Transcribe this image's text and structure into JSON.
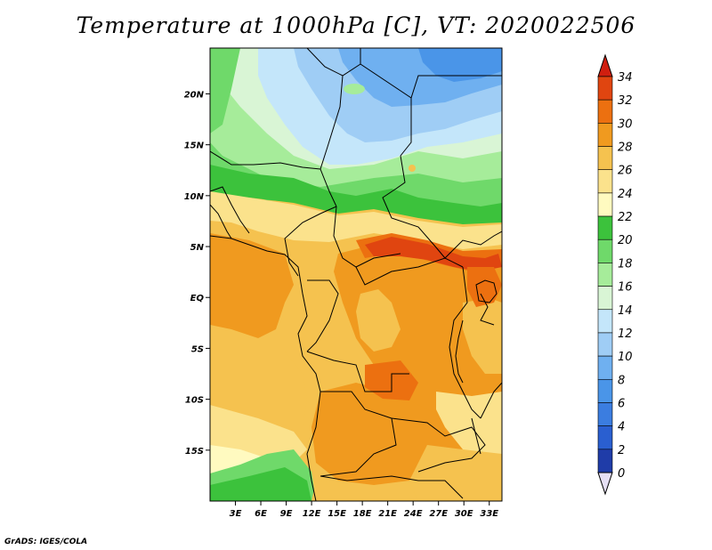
{
  "title": "Temperature at 1000hPa [C], VT: 2020022506",
  "footer": "GrADS: IGES/COLA",
  "map": {
    "type": "filled-contour-map",
    "variable": "Temperature at 1000hPa",
    "units": "C",
    "lon_range": [
      0,
      34.5
    ],
    "lat_range": [
      -20,
      24.5
    ],
    "lon_ticks": [
      "3E",
      "6E",
      "9E",
      "12E",
      "15E",
      "18E",
      "21E",
      "24E",
      "27E",
      "30E",
      "33E"
    ],
    "lat_ticks": [
      "20N",
      "15N",
      "10N",
      "5N",
      "EQ",
      "5S",
      "10S",
      "15S"
    ]
  },
  "colorbar": {
    "levels": [
      "0",
      "2",
      "4",
      "6",
      "8",
      "10",
      "12",
      "14",
      "16",
      "18",
      "20",
      "22",
      "24",
      "26",
      "28",
      "30",
      "32",
      "34"
    ],
    "colors": [
      "#1a1a6e",
      "#1f3ca8",
      "#2a5fd0",
      "#3b7de0",
      "#4a95e8",
      "#6fb0f0",
      "#9fcdf5",
      "#c4e6fa",
      "#d9f5d5",
      "#a6ec9a",
      "#6fd96a",
      "#3cc23c",
      "#fffac0",
      "#fbe28c",
      "#f5c24f",
      "#f09a1f",
      "#ec7010",
      "#e04510",
      "#d01e0f"
    ],
    "top_arrow_color": "#d01e0f",
    "bottom_arrow_color": "#e6e0f5"
  }
}
